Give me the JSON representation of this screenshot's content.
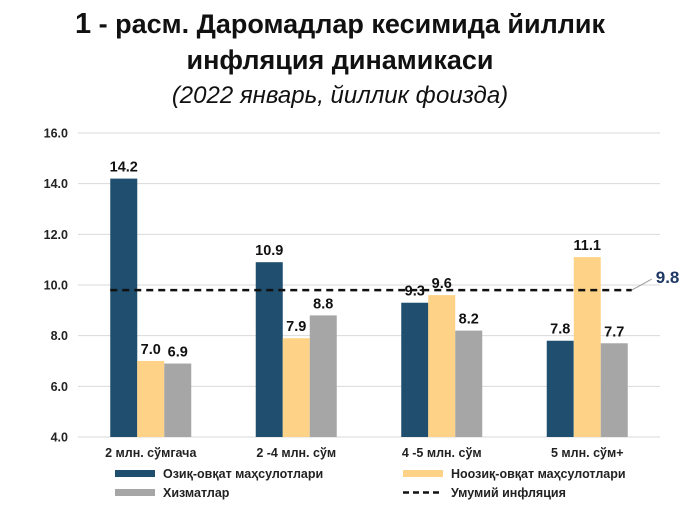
{
  "title": {
    "number": "1",
    "line1_rest": " - расм. Даромадлар кесимида йиллик",
    "line2": "инфляция динамикаси",
    "subtitle": "(2022 январь, йиллик фоизда)"
  },
  "chart_data": {
    "type": "bar",
    "title": "1 - расм. Даромадлар кесимида йиллик инфляция динамикаси",
    "subtitle": "(2022 январь, йиллик фоизда)",
    "categories": [
      "2 млн. сўмгача",
      "2 -4 млн. сўм",
      "4 -5 млн. сўм",
      "5 млн. сўм+"
    ],
    "series": [
      {
        "name": "Озиқ-овқат маҳсулотлари",
        "values": [
          14.2,
          10.9,
          9.3,
          7.8
        ],
        "labels": [
          "14.2",
          "10.9",
          "9.3",
          "7.8"
        ],
        "color": "#1f4e6e"
      },
      {
        "name": "Ноозиқ-овқат маҳсулотлари",
        "values": [
          7.0,
          7.9,
          9.6,
          11.1
        ],
        "labels": [
          "7.0",
          "7.9",
          "9.6",
          "11.1"
        ],
        "color": "#ffd387"
      },
      {
        "name": "Хизматлар",
        "values": [
          6.9,
          8.8,
          8.2,
          7.7
        ],
        "labels": [
          "6.9",
          "8.8",
          "8.2",
          "7.7"
        ],
        "color": "#a6a6a6"
      }
    ],
    "reference_line": {
      "name": "Умумий инфляция",
      "value": 9.8,
      "label": "9.8",
      "color": "#1f3864",
      "style": "dashed"
    },
    "ylim": [
      4.0,
      16.0
    ],
    "yticks": [
      "4.0",
      "6.0",
      "8.0",
      "10.0",
      "12.0",
      "14.0",
      "16.0"
    ],
    "grid": true,
    "legend": "bottom",
    "xlabel": "",
    "ylabel": ""
  }
}
